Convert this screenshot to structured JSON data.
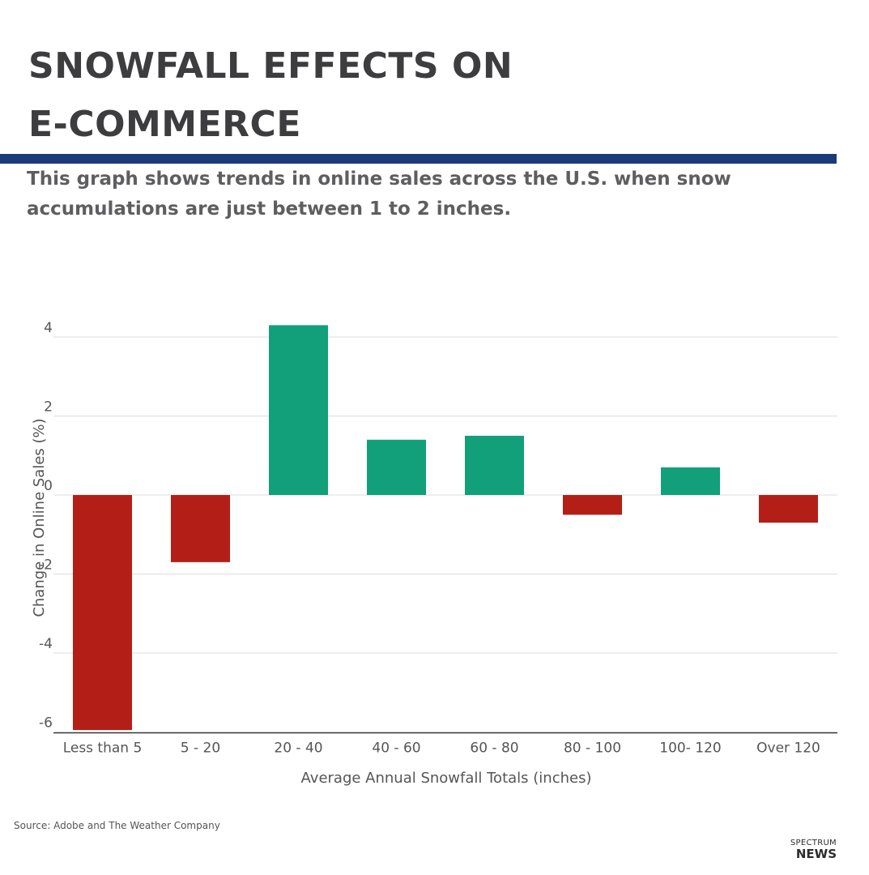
{
  "title_line1": "SNOWFALL EFFECTS ON",
  "title_line2": "E-COMMERCE",
  "subtitle": "This graph shows trends in online sales across the U.S. when snow accumulations are just between 1 to 2 inches.",
  "source": "Source: Adobe and The Weather Company",
  "logo": {
    "top": "SPECTRUM",
    "bottom": "NEWS"
  },
  "colors": {
    "positive": "#11a07a",
    "negative": "#b31f17",
    "rule": "#1b3a7a"
  },
  "chart_data": {
    "type": "bar",
    "categories": [
      "Less than 5",
      "5 - 20",
      "20 - 40",
      "40 - 60",
      "60 - 80",
      "80 - 100",
      "100- 120",
      "Over 120"
    ],
    "values": [
      -5.95,
      -1.7,
      4.3,
      1.4,
      1.5,
      -0.5,
      0.7,
      -0.7
    ],
    "xlabel": "Average Annual Snowfall Totals (inches)",
    "ylabel": "Change in Online Sales (%)",
    "ylim": [
      -6,
      4
    ],
    "yticks": [
      4,
      2,
      0,
      -2,
      -4,
      -6
    ],
    "ytick_labels": [
      "4",
      "2",
      "0",
      "-2",
      "-4",
      "-6"
    ],
    "grid": true
  }
}
